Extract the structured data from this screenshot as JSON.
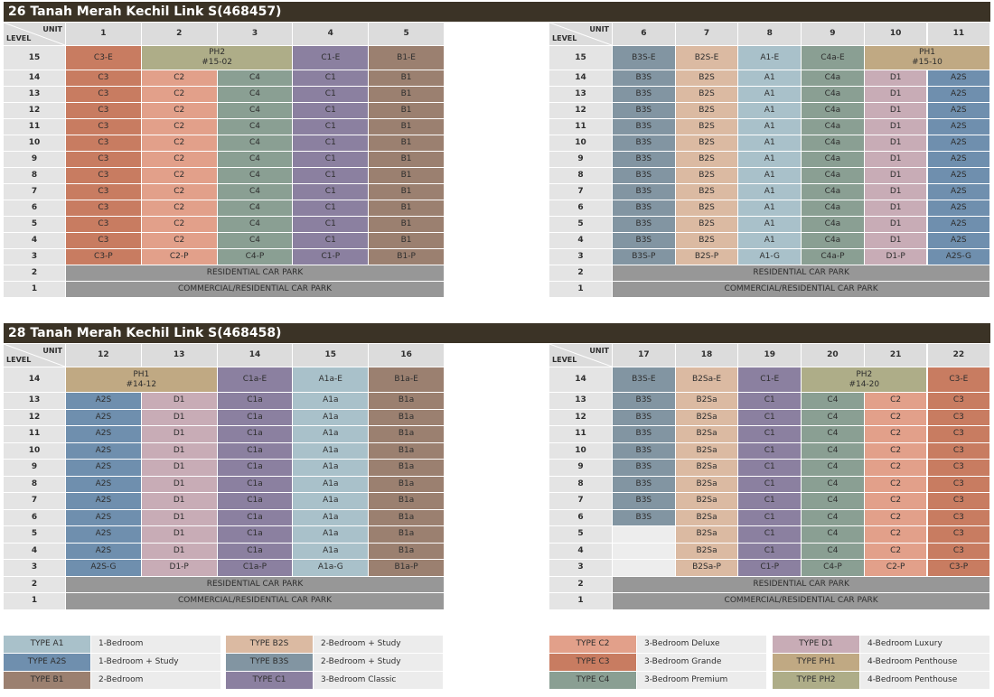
{
  "blocks": [
    {
      "title": "26 Tanah Merah Kechil Link S(468457)",
      "left": {
        "unit_label": "UNIT",
        "level_label": "LEVEL",
        "units": [
          1,
          2,
          3,
          4,
          5
        ],
        "rows": [
          {
            "level": 15,
            "cells": [
              "C3-E",
              {
                "text": "PH2",
                "sub": "#15-02",
                "span": 2
              },
              "C1-E",
              "B1-E"
            ]
          },
          {
            "level": 14,
            "cells": [
              "C3",
              "C2",
              "C4",
              "C1",
              "B1"
            ]
          },
          {
            "level": 13,
            "cells": [
              "C3",
              "C2",
              "C4",
              "C1",
              "B1"
            ]
          },
          {
            "level": 12,
            "cells": [
              "C3",
              "C2",
              "C4",
              "C1",
              "B1"
            ]
          },
          {
            "level": 11,
            "cells": [
              "C3",
              "C2",
              "C4",
              "C1",
              "B1"
            ]
          },
          {
            "level": 10,
            "cells": [
              "C3",
              "C2",
              "C4",
              "C1",
              "B1"
            ]
          },
          {
            "level": 9,
            "cells": [
              "C3",
              "C2",
              "C4",
              "C1",
              "B1"
            ]
          },
          {
            "level": 8,
            "cells": [
              "C3",
              "C2",
              "C4",
              "C1",
              "B1"
            ]
          },
          {
            "level": 7,
            "cells": [
              "C3",
              "C2",
              "C4",
              "C1",
              "B1"
            ]
          },
          {
            "level": 6,
            "cells": [
              "C3",
              "C2",
              "C4",
              "C1",
              "B1"
            ]
          },
          {
            "level": 5,
            "cells": [
              "C3",
              "C2",
              "C4",
              "C1",
              "B1"
            ]
          },
          {
            "level": 4,
            "cells": [
              "C3",
              "C2",
              "C4",
              "C1",
              "B1"
            ]
          },
          {
            "level": 3,
            "cells": [
              "C3-P",
              "C2-P",
              "C4-P",
              "C1-P",
              "B1-P"
            ]
          },
          {
            "level": 2,
            "cells": [
              {
                "text": "RESIDENTIAL CAR PARK",
                "span": 5
              }
            ]
          },
          {
            "level": 1,
            "cells": [
              {
                "text": "COMMERCIAL/RESIDENTIAL CAR PARK",
                "span": 5
              }
            ]
          }
        ]
      },
      "right": {
        "unit_label": "UNIT",
        "level_label": "LEVEL",
        "units": [
          6,
          7,
          8,
          9,
          10,
          11
        ],
        "rows": [
          {
            "level": 15,
            "cells": [
              "B3S-E",
              "B2S-E",
              "A1-E",
              "C4a-E",
              {
                "text": "PH1",
                "sub": "#15-10",
                "span": 2
              }
            ]
          },
          {
            "level": 14,
            "cells": [
              "B3S",
              "B2S",
              "A1",
              "C4a",
              "D1",
              "A2S"
            ]
          },
          {
            "level": 13,
            "cells": [
              "B3S",
              "B2S",
              "A1",
              "C4a",
              "D1",
              "A2S"
            ]
          },
          {
            "level": 12,
            "cells": [
              "B3S",
              "B2S",
              "A1",
              "C4a",
              "D1",
              "A2S"
            ]
          },
          {
            "level": 11,
            "cells": [
              "B3S",
              "B2S",
              "A1",
              "C4a",
              "D1",
              "A2S"
            ]
          },
          {
            "level": 10,
            "cells": [
              "B3S",
              "B2S",
              "A1",
              "C4a",
              "D1",
              "A2S"
            ]
          },
          {
            "level": 9,
            "cells": [
              "B3S",
              "B2S",
              "A1",
              "C4a",
              "D1",
              "A2S"
            ]
          },
          {
            "level": 8,
            "cells": [
              "B3S",
              "B2S",
              "A1",
              "C4a",
              "D1",
              "A2S"
            ]
          },
          {
            "level": 7,
            "cells": [
              "B3S",
              "B2S",
              "A1",
              "C4a",
              "D1",
              "A2S"
            ]
          },
          {
            "level": 6,
            "cells": [
              "B3S",
              "B2S",
              "A1",
              "C4a",
              "D1",
              "A2S"
            ]
          },
          {
            "level": 5,
            "cells": [
              "B3S",
              "B2S",
              "A1",
              "C4a",
              "D1",
              "A2S"
            ]
          },
          {
            "level": 4,
            "cells": [
              "B3S",
              "B2S",
              "A1",
              "C4a",
              "D1",
              "A2S"
            ]
          },
          {
            "level": 3,
            "cells": [
              "B3S-P",
              "B2S-P",
              "A1-G",
              "C4a-P",
              "D1-P",
              "A2S-G"
            ]
          },
          {
            "level": 2,
            "cells": [
              {
                "text": "RESIDENTIAL CAR PARK",
                "span": 6
              }
            ]
          },
          {
            "level": 1,
            "cells": [
              {
                "text": "COMMERCIAL/RESIDENTIAL CAR PARK",
                "span": 6
              }
            ]
          }
        ]
      }
    },
    {
      "title": "28 Tanah Merah Kechil Link S(468458)",
      "left": {
        "unit_label": "UNIT",
        "level_label": "LEVEL",
        "units": [
          12,
          13,
          14,
          15,
          16
        ],
        "rows": [
          {
            "level": 14,
            "cells": [
              {
                "text": "PH1",
                "sub": "#14-12",
                "span": 2
              },
              "C1a-E",
              "A1a-E",
              "B1a-E"
            ]
          },
          {
            "level": 13,
            "cells": [
              "A2S",
              "D1",
              "C1a",
              "A1a",
              "B1a"
            ]
          },
          {
            "level": 12,
            "cells": [
              "A2S",
              "D1",
              "C1a",
              "A1a",
              "B1a"
            ]
          },
          {
            "level": 11,
            "cells": [
              "A2S",
              "D1",
              "C1a",
              "A1a",
              "B1a"
            ]
          },
          {
            "level": 10,
            "cells": [
              "A2S",
              "D1",
              "C1a",
              "A1a",
              "B1a"
            ]
          },
          {
            "level": 9,
            "cells": [
              "A2S",
              "D1",
              "C1a",
              "A1a",
              "B1a"
            ]
          },
          {
            "level": 8,
            "cells": [
              "A2S",
              "D1",
              "C1a",
              "A1a",
              "B1a"
            ]
          },
          {
            "level": 7,
            "cells": [
              "A2S",
              "D1",
              "C1a",
              "A1a",
              "B1a"
            ]
          },
          {
            "level": 6,
            "cells": [
              "A2S",
              "D1",
              "C1a",
              "A1a",
              "B1a"
            ]
          },
          {
            "level": 5,
            "cells": [
              "A2S",
              "D1",
              "C1a",
              "A1a",
              "B1a"
            ]
          },
          {
            "level": 4,
            "cells": [
              "A2S",
              "D1",
              "C1a",
              "A1a",
              "B1a"
            ]
          },
          {
            "level": 3,
            "cells": [
              "A2S-G",
              "D1-P",
              "C1a-P",
              "A1a-G",
              "B1a-P"
            ]
          },
          {
            "level": 2,
            "cells": [
              {
                "text": "RESIDENTIAL CAR PARK",
                "span": 5
              }
            ]
          },
          {
            "level": 1,
            "cells": [
              {
                "text": "COMMERCIAL/RESIDENTIAL CAR PARK",
                "span": 5
              }
            ]
          }
        ]
      },
      "right": {
        "unit_label": "UNIT",
        "level_label": "LEVEL",
        "units": [
          17,
          18,
          19,
          20,
          21,
          22
        ],
        "rows": [
          {
            "level": 14,
            "cells": [
              "B3S-E",
              "B2Sa-E",
              "C1-E",
              {
                "text": "PH2",
                "sub": "#14-20",
                "span": 2
              },
              "C3-E"
            ]
          },
          {
            "level": 13,
            "cells": [
              "B3S",
              "B2Sa",
              "C1",
              "C4",
              "C2",
              "C3"
            ]
          },
          {
            "level": 12,
            "cells": [
              "B3S",
              "B2Sa",
              "C1",
              "C4",
              "C2",
              "C3"
            ]
          },
          {
            "level": 11,
            "cells": [
              "B3S",
              "B2Sa",
              "C1",
              "C4",
              "C2",
              "C3"
            ]
          },
          {
            "level": 10,
            "cells": [
              "B3S",
              "B2Sa",
              "C1",
              "C4",
              "C2",
              "C3"
            ]
          },
          {
            "level": 9,
            "cells": [
              "B3S",
              "B2Sa",
              "C1",
              "C4",
              "C2",
              "C3"
            ]
          },
          {
            "level": 8,
            "cells": [
              "B3S",
              "B2Sa",
              "C1",
              "C4",
              "C2",
              "C3"
            ]
          },
          {
            "level": 7,
            "cells": [
              "B3S",
              "B2Sa",
              "C1",
              "C4",
              "C2",
              "C3"
            ]
          },
          {
            "level": 6,
            "cells": [
              "B3S",
              "B2Sa",
              "C1",
              "C4",
              "C2",
              "C3"
            ]
          },
          {
            "level": 5,
            "cells": [
              null,
              "B2Sa",
              "C1",
              "C4",
              "C2",
              "C3"
            ]
          },
          {
            "level": 4,
            "cells": [
              null,
              "B2Sa",
              "C1",
              "C4",
              "C2",
              "C3"
            ]
          },
          {
            "level": 3,
            "cells": [
              null,
              "B2Sa-P",
              "C1-P",
              "C4-P",
              "C2-P",
              "C3-P"
            ]
          },
          {
            "level": 2,
            "cells": [
              {
                "text": "RESIDENTIAL CAR PARK",
                "span": 6
              }
            ]
          },
          {
            "level": 1,
            "cells": [
              {
                "text": "COMMERCIAL/RESIDENTIAL CAR PARK",
                "span": 6
              }
            ]
          }
        ]
      }
    }
  ],
  "legend": [
    {
      "type": "TYPE A1",
      "desc": "1-Bedroom",
      "color": "#a9c1ca"
    },
    {
      "type": "TYPE A2S",
      "desc": "1-Bedroom + Study",
      "color": "#6f8fae"
    },
    {
      "type": "TYPE B1",
      "desc": "2-Bedroom",
      "color": "#9b8070"
    },
    {
      "type": "TYPE B2S",
      "desc": "2-Bedroom + Study",
      "color": "#dbbaa2"
    },
    {
      "type": "TYPE B3S",
      "desc": "2-Bedroom + Study",
      "color": "#8295a2"
    },
    {
      "type": "TYPE C1",
      "desc": "3-Bedroom Classic",
      "color": "#8b80a0"
    },
    {
      "type": "TYPE C2",
      "desc": "3-Bedroom Deluxe",
      "color": "#e2a08a"
    },
    {
      "type": "TYPE C3",
      "desc": "3-Bedroom Grande",
      "color": "#c87c61"
    },
    {
      "type": "TYPE C4",
      "desc": "3-Bedroom Premium",
      "color": "#8a9f93"
    },
    {
      "type": "TYPE D1",
      "desc": "4-Bedroom Luxury",
      "color": "#c8acb6"
    },
    {
      "type": "TYPE PH1",
      "desc": "4-Bedroom Penthouse",
      "color": "#c0a983"
    },
    {
      "type": "TYPE PH2",
      "desc": "4-Bedroom Penthouse",
      "color": "#aead88"
    }
  ]
}
